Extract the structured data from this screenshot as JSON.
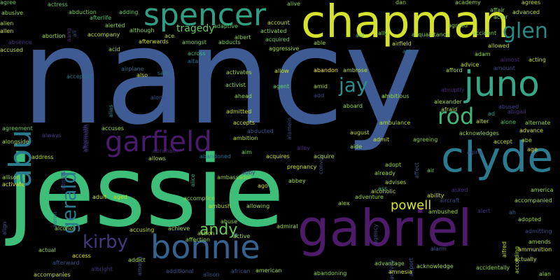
{
  "cloud": {
    "words": [
      {
        "text": "nancy",
        "color": "#3e5c93"
      },
      {
        "text": "jessie",
        "color": "#3dbf7a"
      },
      {
        "text": "chapman",
        "color": "#d4e22c"
      },
      {
        "text": "gabriel",
        "color": "#4e1b6b"
      },
      {
        "text": "spencer",
        "color": "#2f9f84"
      },
      {
        "text": "clyde",
        "color": "#2c7a90"
      },
      {
        "text": "bonnie",
        "color": "#35628f"
      },
      {
        "text": "juno",
        "color": "#36a88a"
      },
      {
        "text": "abu",
        "color": "#287c8e"
      },
      {
        "text": "garfield",
        "color": "#4a1a6d"
      },
      {
        "text": "glen",
        "color": "#2c8a85"
      },
      {
        "text": "rod",
        "color": "#3fb87c"
      },
      {
        "text": "gerald",
        "color": "#2b7a8f"
      },
      {
        "text": "jay",
        "color": "#2f8b8c"
      },
      {
        "text": "kirby",
        "color": "#43397f"
      },
      {
        "text": "andy",
        "color": "#6cc95c"
      },
      {
        "text": "powell",
        "color": "#d8e22a"
      },
      {
        "text": "tragedy",
        "color": "#67c85f"
      },
      {
        "text": "abandon",
        "color": "#fde725"
      },
      {
        "text": "accident",
        "color": "#7ed34f"
      },
      {
        "text": "abuse",
        "color": "#8fd744"
      },
      {
        "text": "agent",
        "color": "#69cc5c"
      },
      {
        "text": "alien",
        "color": "#b5de2b"
      },
      {
        "text": "allen",
        "color": "#d2e21b"
      },
      {
        "text": "accused",
        "color": "#c8e020"
      },
      {
        "text": "abortion",
        "color": "#a2da37"
      },
      {
        "text": "abusive",
        "color": "#8fd744"
      },
      {
        "text": "agree",
        "color": "#6ccd5a"
      },
      {
        "text": "actress",
        "color": "#5ec962"
      },
      {
        "text": "adding",
        "color": "#6ccd5a"
      },
      {
        "text": "afterlife",
        "color": "#4ac16d"
      },
      {
        "text": "abduction",
        "color": "#7ad151"
      },
      {
        "text": "alerted",
        "color": "#8bd646"
      },
      {
        "text": "accompany",
        "color": "#c5e021"
      },
      {
        "text": "although",
        "color": "#8fd744"
      },
      {
        "text": "ace",
        "color": "#b2dd2d"
      },
      {
        "text": "alive",
        "color": "#84d44b"
      },
      {
        "text": "dan",
        "color": "#9fda3a"
      },
      {
        "text": "academy",
        "color": "#9dd93b"
      },
      {
        "text": "agrees",
        "color": "#b8de29"
      },
      {
        "text": "affair",
        "color": "#7ad151"
      },
      {
        "text": "actor",
        "color": "#7ad151"
      },
      {
        "text": "advanced",
        "color": "#b8de29"
      },
      {
        "text": "agreed",
        "color": "#9fda3a"
      },
      {
        "text": "allowed",
        "color": "#c2df23"
      },
      {
        "text": "adam",
        "color": "#95d840"
      },
      {
        "text": "acting",
        "color": "#bddf26"
      },
      {
        "text": "alternate",
        "color": "#96d83f"
      },
      {
        "text": "advance",
        "color": "#d8e219"
      },
      {
        "text": "accept",
        "color": "#bade28"
      },
      {
        "text": "abe",
        "color": "#aadc32"
      },
      {
        "text": "age",
        "color": "#dde318"
      },
      {
        "text": "aging",
        "color": "#3e4989"
      },
      {
        "text": "acknowledges",
        "color": "#9dd93b"
      },
      {
        "text": "alter",
        "color": "#c5e021"
      },
      {
        "text": "alone",
        "color": "#4ec36b"
      },
      {
        "text": "abused",
        "color": "#414487"
      },
      {
        "text": "abigail",
        "color": "#472f7d"
      },
      {
        "text": "ad",
        "color": "#1f9e89"
      },
      {
        "text": "afraid",
        "color": "#bade28"
      },
      {
        "text": "alexander",
        "color": "#a5db36"
      },
      {
        "text": "abruptly",
        "color": "#482878"
      },
      {
        "text": "amid",
        "color": "#b5de2b"
      },
      {
        "text": "aboard",
        "color": "#9fda3a"
      },
      {
        "text": "ambitious",
        "color": "#8fd744"
      },
      {
        "text": "ambulance",
        "color": "#b2dd2d"
      },
      {
        "text": "ambrose",
        "color": "#b2dd2d"
      },
      {
        "text": "allow",
        "color": "#cae11f"
      },
      {
        "text": "account",
        "color": "#c8e020"
      },
      {
        "text": "activated",
        "color": "#8bd646"
      },
      {
        "text": "acquired",
        "color": "#6ece58"
      },
      {
        "text": "able",
        "color": "#a2da37"
      },
      {
        "text": "airfield",
        "color": "#cae11f"
      },
      {
        "text": "acquaintance",
        "color": "#8fd744"
      },
      {
        "text": "aid",
        "color": "#5ec962"
      },
      {
        "text": "ally",
        "color": "#85d54a"
      },
      {
        "text": "act",
        "color": "#2a788e"
      },
      {
        "text": "aggressive",
        "color": "#a2da37"
      },
      {
        "text": "albert",
        "color": "#8fd744"
      },
      {
        "text": "abducts",
        "color": "#7ad151"
      },
      {
        "text": "amongst",
        "color": "#7ad151"
      },
      {
        "text": "afterwards",
        "color": "#d2e21b"
      },
      {
        "text": "acid",
        "color": "#9dd93b"
      },
      {
        "text": "adaptive",
        "color": "#5ec962"
      },
      {
        "text": "absence",
        "color": "#46337f"
      },
      {
        "text": "across",
        "color": "#35b779"
      },
      {
        "text": "altar",
        "color": "#2c728e"
      },
      {
        "text": "activates",
        "color": "#a2da37"
      },
      {
        "text": "activist",
        "color": "#8fd744"
      },
      {
        "text": "ahead",
        "color": "#8bd646"
      },
      {
        "text": "sale",
        "color": "#2a788e"
      },
      {
        "text": "airplane",
        "color": "#31688e"
      },
      {
        "text": "also",
        "color": "#d2e21b"
      },
      {
        "text": "along",
        "color": "#3b528b"
      },
      {
        "text": "accepted",
        "color": "#2c728e"
      },
      {
        "text": "aftermath",
        "color": "#46337f"
      },
      {
        "text": "alias",
        "color": "#21918c"
      },
      {
        "text": "alamein",
        "color": "#404688"
      },
      {
        "text": "advice",
        "color": "#c5e021"
      },
      {
        "text": "amount",
        "color": "#3e4989"
      },
      {
        "text": "almost",
        "color": "#482878"
      },
      {
        "text": "afford",
        "color": "#a5db36"
      },
      {
        "text": "admitted",
        "color": "#c8e020"
      },
      {
        "text": "accepts",
        "color": "#cae11f"
      },
      {
        "text": "accuses",
        "color": "#a2da37"
      },
      {
        "text": "ambition",
        "color": "#b5de2b"
      },
      {
        "text": "abducted",
        "color": "#3b528b"
      },
      {
        "text": "agreement",
        "color": "#6ece58"
      },
      {
        "text": "always",
        "color": "#443983"
      },
      {
        "text": "alongside",
        "color": "#a5db36"
      },
      {
        "text": "abraham",
        "color": "#472d7b"
      },
      {
        "text": "abandoned",
        "color": "#2c728e"
      },
      {
        "text": "allows",
        "color": "#b5de2b"
      },
      {
        "text": "address",
        "color": "#b5de2b"
      },
      {
        "text": "admits",
        "color": "#443983"
      },
      {
        "text": "aftermath",
        "color": "#46337f"
      },
      {
        "text": "convoy",
        "color": "#3b528b"
      },
      {
        "text": "alley",
        "color": "#472d7b"
      },
      {
        "text": "august",
        "color": "#bddf26"
      },
      {
        "text": "aide",
        "color": "#9dd93b"
      },
      {
        "text": "admit",
        "color": "#c8e020"
      },
      {
        "text": "agreeing",
        "color": "#85d54a"
      },
      {
        "text": "acquire",
        "color": "#b5de2b"
      },
      {
        "text": "acquires",
        "color": "#cde11d"
      },
      {
        "text": "aim",
        "color": "#7ad151"
      },
      {
        "text": "alice",
        "color": "#29af7f"
      },
      {
        "text": "pregnancy",
        "color": "#d2e21b"
      },
      {
        "text": "affect",
        "color": "#3b528b"
      },
      {
        "text": "adopt",
        "color": "#a2da37"
      },
      {
        "text": "air",
        "color": "#7ad151"
      },
      {
        "text": "already",
        "color": "#a2da37"
      },
      {
        "text": "advises",
        "color": "#b5de2b"
      },
      {
        "text": "abbey",
        "color": "#a2da37"
      },
      {
        "text": "abby",
        "color": "#472f7d"
      },
      {
        "text": "ago",
        "color": "#cae11f"
      },
      {
        "text": "ambassador",
        "color": "#9dd93b"
      },
      {
        "text": "allison",
        "color": "#a5db36"
      },
      {
        "text": "activate",
        "color": "#dde318"
      },
      {
        "text": "alcoholic",
        "color": "#bddf26"
      },
      {
        "text": "ability",
        "color": "#d2e21b"
      },
      {
        "text": "aircraft",
        "color": "#3e4989"
      },
      {
        "text": "asked",
        "color": "#472f7d"
      },
      {
        "text": "adult",
        "color": "#c5e021"
      },
      {
        "text": "aged",
        "color": "#c5e021"
      },
      {
        "text": "accomplice",
        "color": "#8fd744"
      },
      {
        "text": "ambush",
        "color": "#bddf26"
      },
      {
        "text": "allowing",
        "color": "#a2da37"
      },
      {
        "text": "alex",
        "color": "#a5db36"
      },
      {
        "text": "adventure",
        "color": "#9dd93b"
      },
      {
        "text": "agency",
        "color": "#3e4989"
      },
      {
        "text": "aaron",
        "color": "#2c728e"
      },
      {
        "text": "align",
        "color": "#3b528b"
      },
      {
        "text": "america",
        "color": "#a2da37"
      },
      {
        "text": "accompanied",
        "color": "#9dd93b"
      },
      {
        "text": "alert",
        "color": "#46337f"
      },
      {
        "text": "ah",
        "color": "#33638d"
      },
      {
        "text": "adopted",
        "color": "#9fda3a"
      },
      {
        "text": "admitting",
        "color": "#404688"
      },
      {
        "text": "amends",
        "color": "#a5db36"
      },
      {
        "text": "ambushed",
        "color": "#a2da37"
      },
      {
        "text": "alcohol",
        "color": "#8fd744"
      },
      {
        "text": "accusing",
        "color": "#bddf26"
      },
      {
        "text": "achieve",
        "color": "#a2da37"
      },
      {
        "text": "affection",
        "color": "#8fd744"
      },
      {
        "text": "admiral",
        "color": "#a5db36"
      },
      {
        "text": "active",
        "color": "#a5db36"
      },
      {
        "text": "action",
        "color": "#a2da37"
      },
      {
        "text": "actual",
        "color": "#8fd744"
      },
      {
        "text": "access",
        "color": "#dde318"
      },
      {
        "text": "afterward",
        "color": "#3b528b"
      },
      {
        "text": "among",
        "color": "#3b528b"
      },
      {
        "text": "activity",
        "color": "#3b528b"
      },
      {
        "text": "airport",
        "color": "#3b528b"
      },
      {
        "text": "alfred",
        "color": "#c5e021"
      },
      {
        "text": "according",
        "color": "#a5db36"
      },
      {
        "text": "ammunition",
        "color": "#d2e21b"
      },
      {
        "text": "alarm",
        "color": "#3b528b"
      },
      {
        "text": "addict",
        "color": "#a2da37"
      },
      {
        "text": "albright",
        "color": "#46337f"
      },
      {
        "text": "additional",
        "color": "#3b528b"
      },
      {
        "text": "alison",
        "color": "#3b528b"
      },
      {
        "text": "african",
        "color": "#3b528b"
      },
      {
        "text": "american",
        "color": "#a2da37"
      },
      {
        "text": "advantage",
        "color": "#8fd744"
      },
      {
        "text": "amnesia",
        "color": "#d2e21b"
      },
      {
        "text": "acknowledge",
        "color": "#a2da37"
      },
      {
        "text": "accidentally",
        "color": "#8fd744"
      },
      {
        "text": "actually",
        "color": "#c5e021"
      },
      {
        "text": "alan",
        "color": "#8fd744"
      },
      {
        "text": "abandoning",
        "color": "#8fd744"
      },
      {
        "text": "accompanies",
        "color": "#bddf26"
      },
      {
        "text": "aang",
        "color": "#482878"
      },
      {
        "text": "ali",
        "color": "#3b528b"
      },
      {
        "text": "al",
        "color": "#8fd744"
      },
      {
        "text": "ass",
        "color": "#35b779"
      },
      {
        "text": "add",
        "color": "#404688"
      }
    ]
  }
}
